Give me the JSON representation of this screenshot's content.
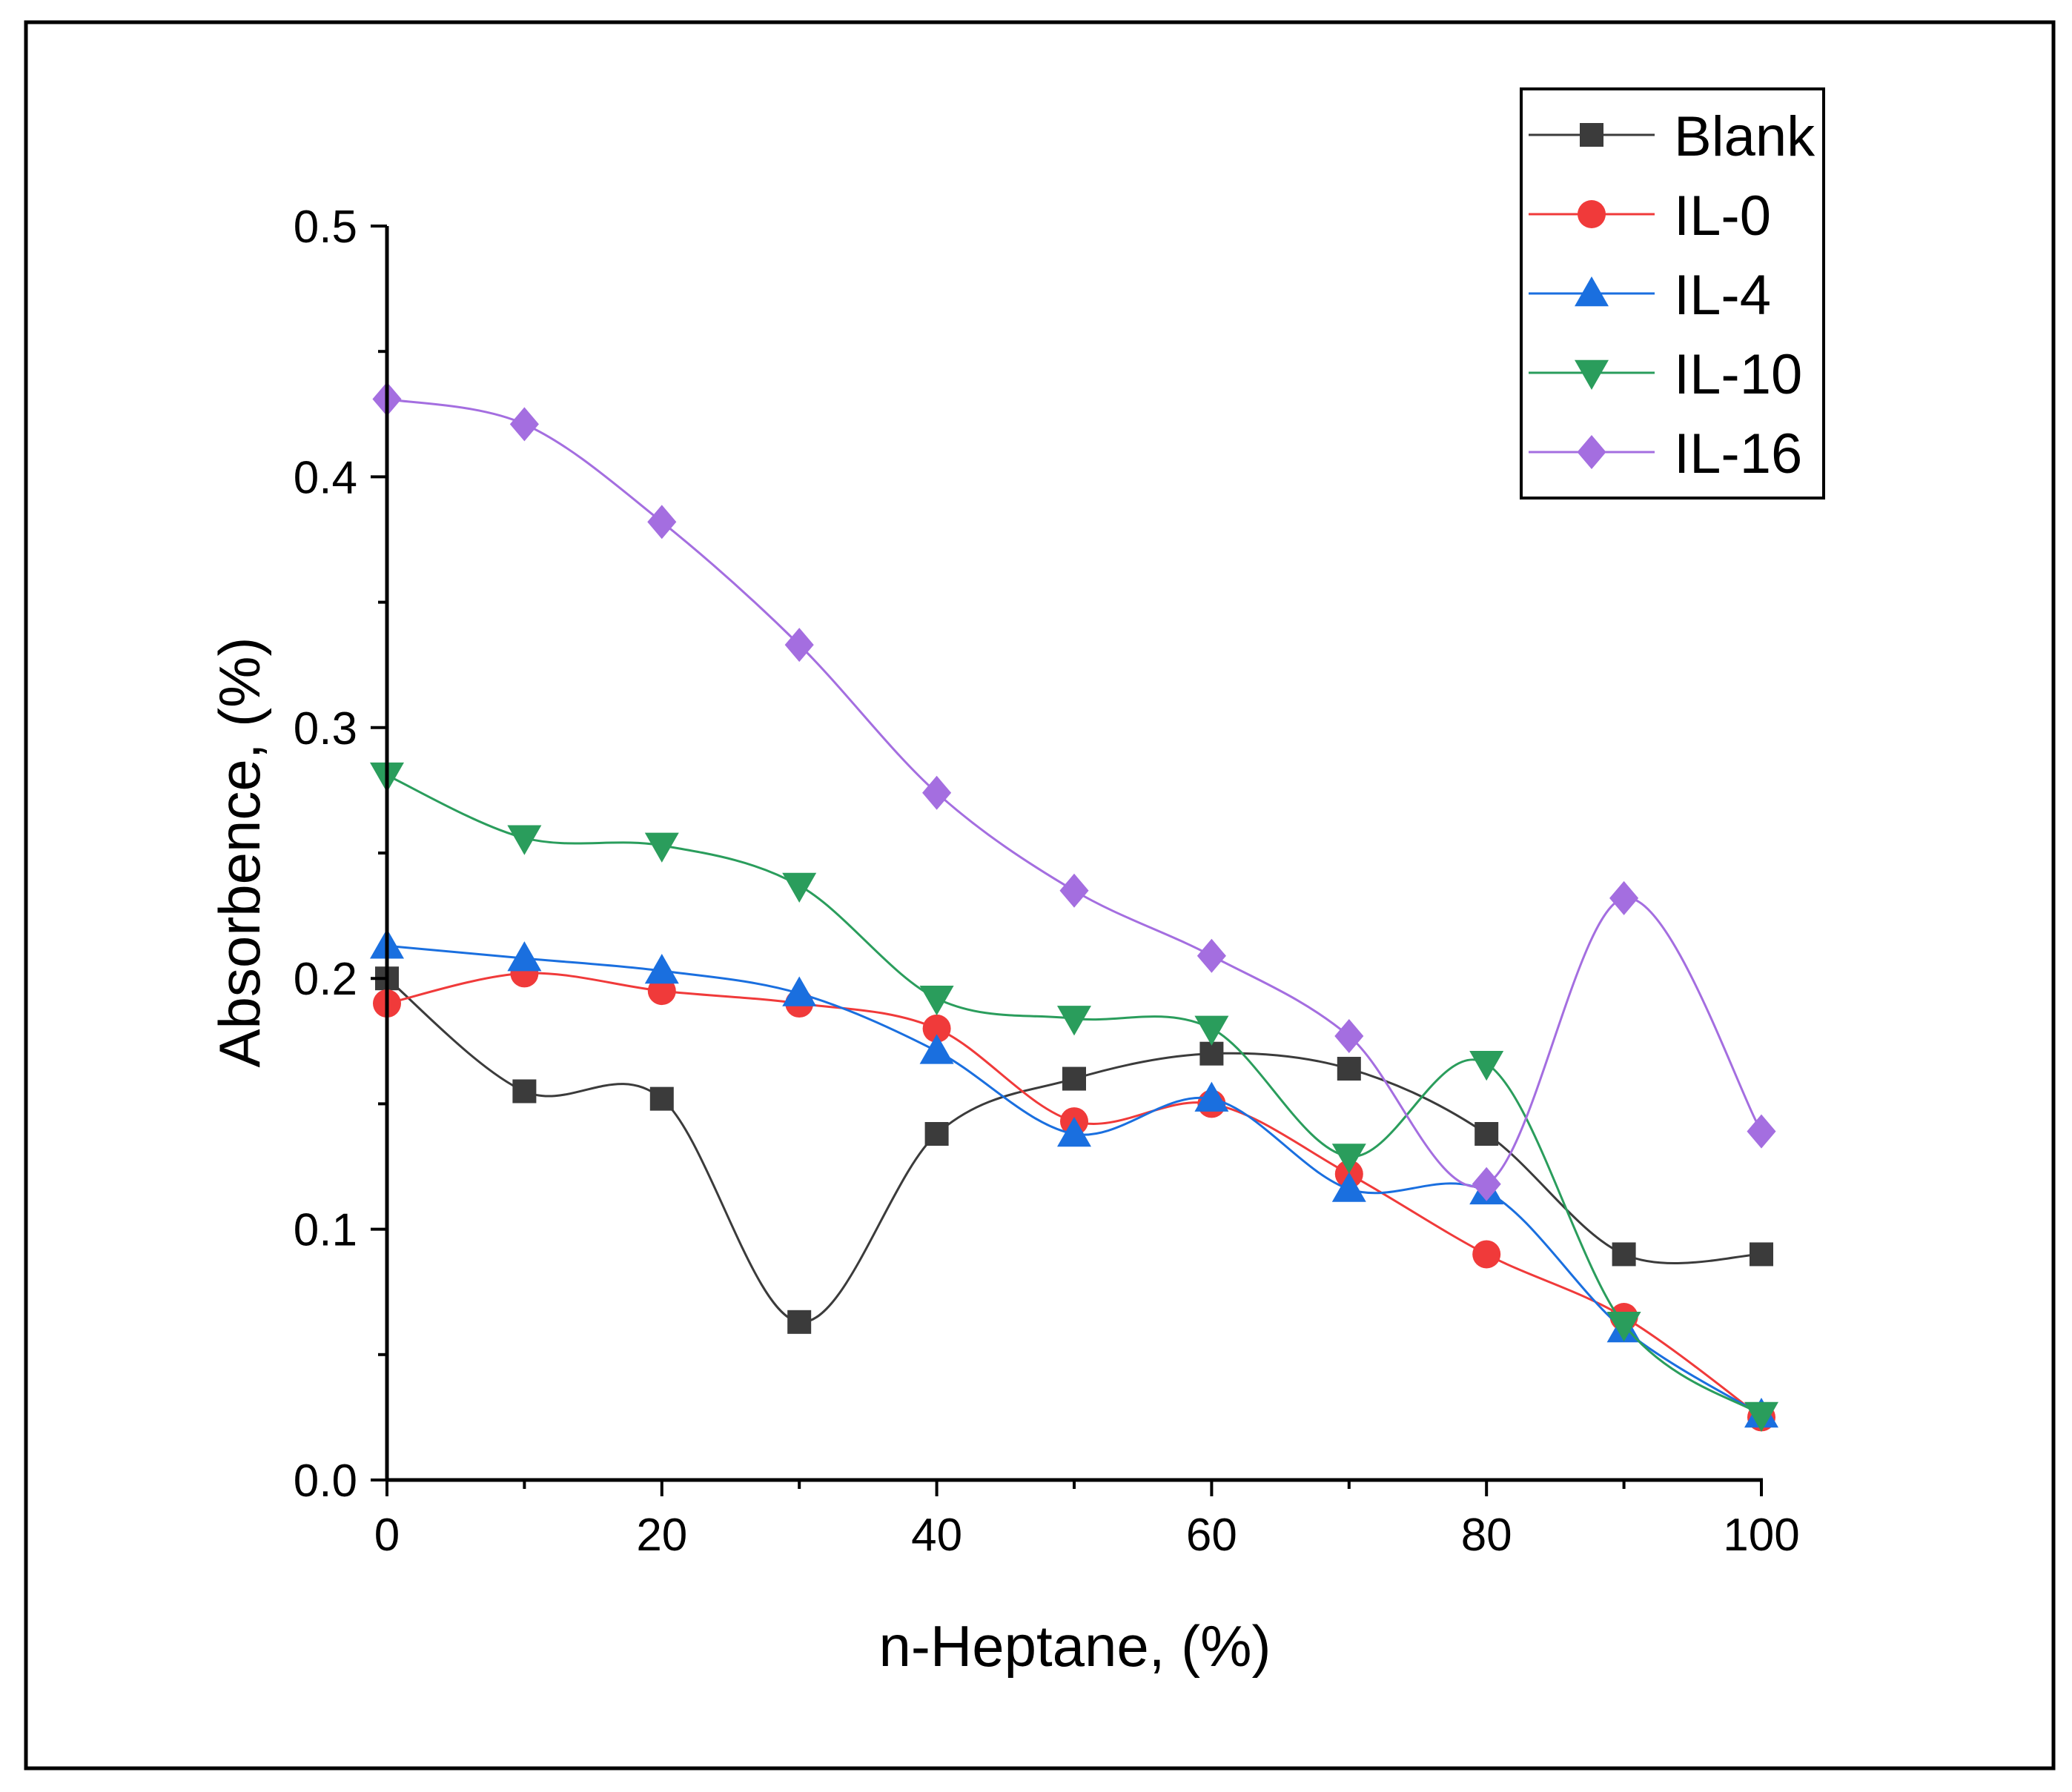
{
  "chart_data": {
    "type": "line",
    "xlabel": "n-Heptane, (%)",
    "ylabel": "Absorbence, (%)",
    "xlim": [
      0,
      100
    ],
    "ylim": [
      0,
      0.5
    ],
    "x_ticks": [
      "0",
      "20",
      "40",
      "60",
      "80",
      "100"
    ],
    "y_ticks": [
      "0.0",
      "0.1",
      "0.2",
      "0.3",
      "0.4",
      "0.5"
    ],
    "grid": false,
    "legend_position": "top-right",
    "smooth": true,
    "x": [
      0,
      10,
      20,
      30,
      40,
      50,
      60,
      70,
      80,
      90,
      100
    ],
    "series": [
      {
        "name": "Blank",
        "marker": "square",
        "color": "#3b3b3b",
        "values": [
          0.2,
          0.155,
          0.152,
          0.063,
          0.138,
          0.16,
          0.17,
          0.164,
          0.138,
          0.09,
          0.09
        ]
      },
      {
        "name": "IL-0",
        "marker": "circle",
        "color": "#f03a3a",
        "values": [
          0.19,
          0.202,
          0.195,
          0.19,
          0.18,
          0.143,
          0.15,
          0.122,
          0.09,
          0.065,
          0.025
        ]
      },
      {
        "name": "IL-4",
        "marker": "triangle-up",
        "color": "#1a6fdf",
        "values": [
          0.213,
          0.208,
          0.203,
          0.194,
          0.171,
          0.138,
          0.152,
          0.116,
          0.115,
          0.06,
          0.026
        ]
      },
      {
        "name": "IL-10",
        "marker": "triangle-down",
        "color": "#2a9d5c",
        "values": [
          0.281,
          0.256,
          0.253,
          0.237,
          0.192,
          0.184,
          0.18,
          0.129,
          0.166,
          0.062,
          0.026
        ]
      },
      {
        "name": "IL-16",
        "marker": "diamond",
        "color": "#a46ee0",
        "values": [
          0.431,
          0.421,
          0.382,
          0.333,
          0.274,
          0.235,
          0.209,
          0.177,
          0.118,
          0.232,
          0.139
        ]
      }
    ]
  }
}
